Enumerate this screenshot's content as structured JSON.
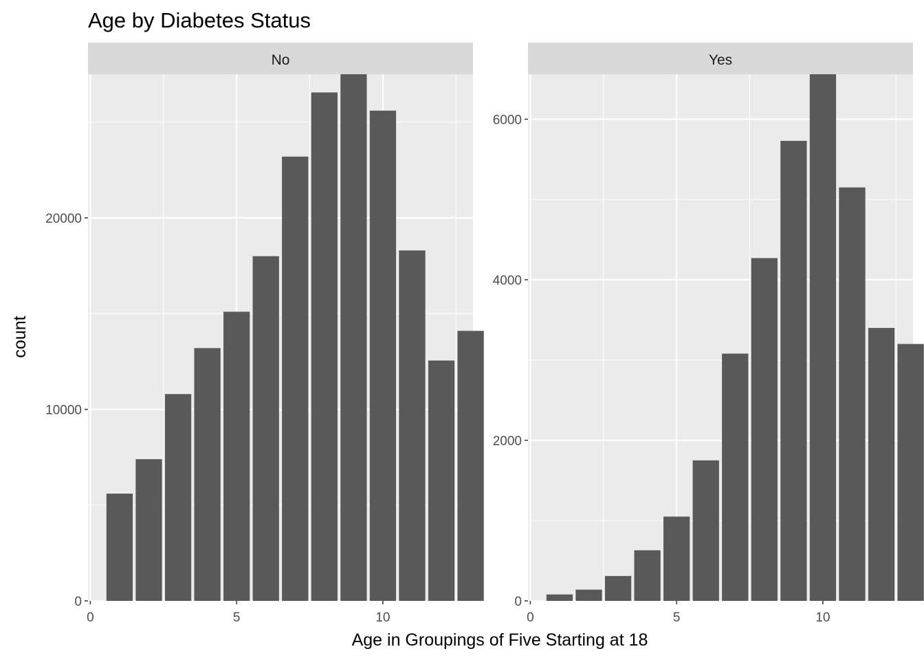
{
  "chart_data": {
    "type": "bar",
    "title": "Age by Diabetes Status",
    "xlabel": "Age in Groupings of Five Starting at 18",
    "ylabel": "count",
    "grid": true,
    "panels": [
      {
        "name": "No",
        "x": [
          1,
          2,
          3,
          4,
          5,
          6,
          7,
          8,
          9,
          10,
          11,
          12,
          13
        ],
        "values": [
          5600,
          7400,
          10800,
          13200,
          15100,
          18000,
          23200,
          26550,
          27500,
          25600,
          18300,
          12550,
          14100
        ],
        "xlim": [
          -0.08,
          13.08
        ],
        "ylim": [
          0,
          27500
        ],
        "x_ticks": [
          0,
          5,
          10
        ],
        "y_ticks": [
          0,
          10000,
          20000
        ]
      },
      {
        "name": "Yes",
        "x": [
          1,
          2,
          3,
          4,
          5,
          6,
          7,
          8,
          9,
          10,
          11,
          12,
          13
        ],
        "values": [
          80,
          140,
          310,
          630,
          1050,
          1750,
          3080,
          4270,
          5730,
          6560,
          5150,
          3400,
          3200
        ],
        "xlim": [
          -0.08,
          13.08
        ],
        "ylim": [
          0,
          6560
        ],
        "x_ticks": [
          0,
          5,
          10
        ],
        "y_ticks": [
          0,
          2000,
          4000,
          6000
        ]
      }
    ]
  },
  "colors": {
    "panel_bg": "#ebebeb",
    "strip_bg": "#d9d9d9",
    "grid": "#ffffff",
    "bar": "#595959",
    "tick": "#333333"
  }
}
